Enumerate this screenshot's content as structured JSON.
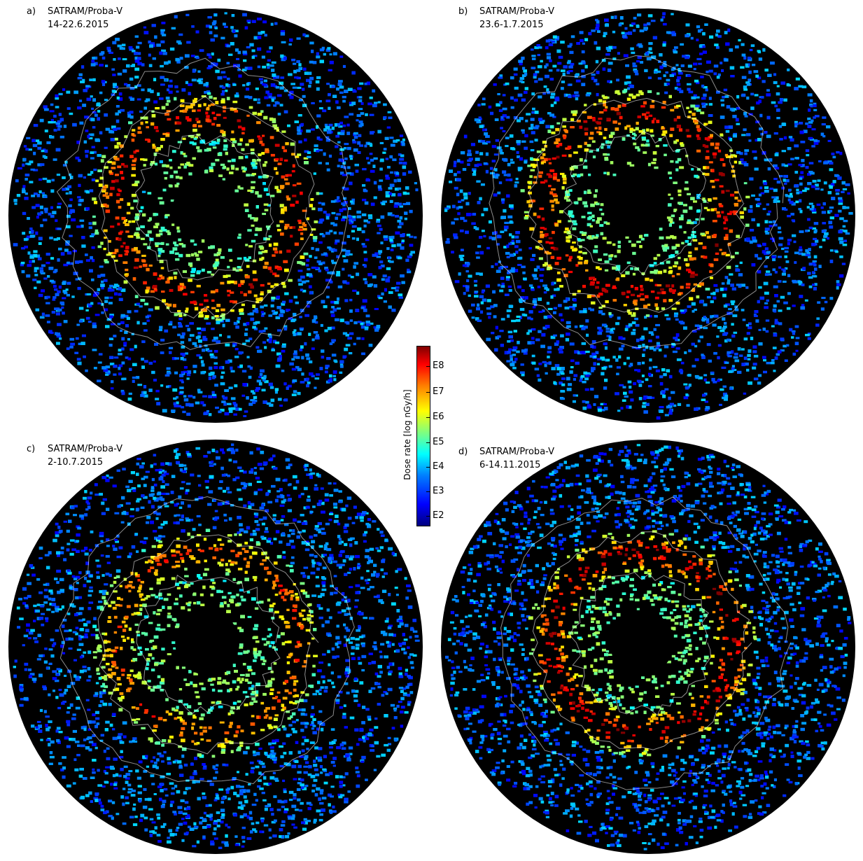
{
  "panels": [
    {
      "id": "a",
      "letter": "a)",
      "title": "SATRAM/Proba-V",
      "date": "14-22.6.2015"
    },
    {
      "id": "b",
      "letter": "b)",
      "title": "SATRAM/Proba-V",
      "date": "23.6-1.7.2015"
    },
    {
      "id": "c",
      "letter": "c)",
      "title": "SATRAM/Proba-V",
      "date": "2-10.7.2015"
    },
    {
      "id": "d",
      "letter": "d)",
      "title": "SATRAM/Proba-V",
      "date": "6-14.11.2015"
    }
  ],
  "colorbar": {
    "label": "Dose rate [log nGy/h]",
    "ticks": [
      "E8",
      "E7",
      "E6",
      "E5",
      "E4",
      "E3",
      "E2"
    ],
    "colors": [
      "#00007f",
      "#0000ff",
      "#007fff",
      "#00ffff",
      "#7fff7f",
      "#ffff00",
      "#ff7f00",
      "#ff0000",
      "#7f0000"
    ]
  },
  "map": {
    "projection": "orthographic, north polar view",
    "background_color": "#000000",
    "coastline_color": "#ffffff"
  },
  "chart_data": [
    {
      "type": "heatmap",
      "panel": "a",
      "title": "SATRAM/Proba-V",
      "period": "14-22.6.2015",
      "field": "dose rate",
      "units": "log nGy/h",
      "scale_range": [
        "E2",
        "E8"
      ],
      "peak_level": "E8",
      "peak_zone_color": "#ff3300"
    },
    {
      "type": "heatmap",
      "panel": "b",
      "title": "SATRAM/Proba-V",
      "period": "23.6-1.7.2015",
      "field": "dose rate",
      "units": "log nGy/h",
      "scale_range": [
        "E2",
        "E8"
      ],
      "peak_level": "E8",
      "peak_zone_color": "#ff2200"
    },
    {
      "type": "heatmap",
      "panel": "c",
      "title": "SATRAM/Proba-V",
      "period": "2-10.7.2015",
      "field": "dose rate",
      "units": "log nGy/h",
      "scale_range": [
        "E2",
        "E8"
      ],
      "peak_level": "E7",
      "peak_zone_color": "#ff7700"
    },
    {
      "type": "heatmap",
      "panel": "d",
      "title": "SATRAM/Proba-V",
      "period": "6-14.11.2015",
      "field": "dose rate",
      "units": "log nGy/h",
      "scale_range": [
        "E2",
        "E8"
      ],
      "peak_level": "E8",
      "peak_zone_color": "#ff1100"
    }
  ]
}
